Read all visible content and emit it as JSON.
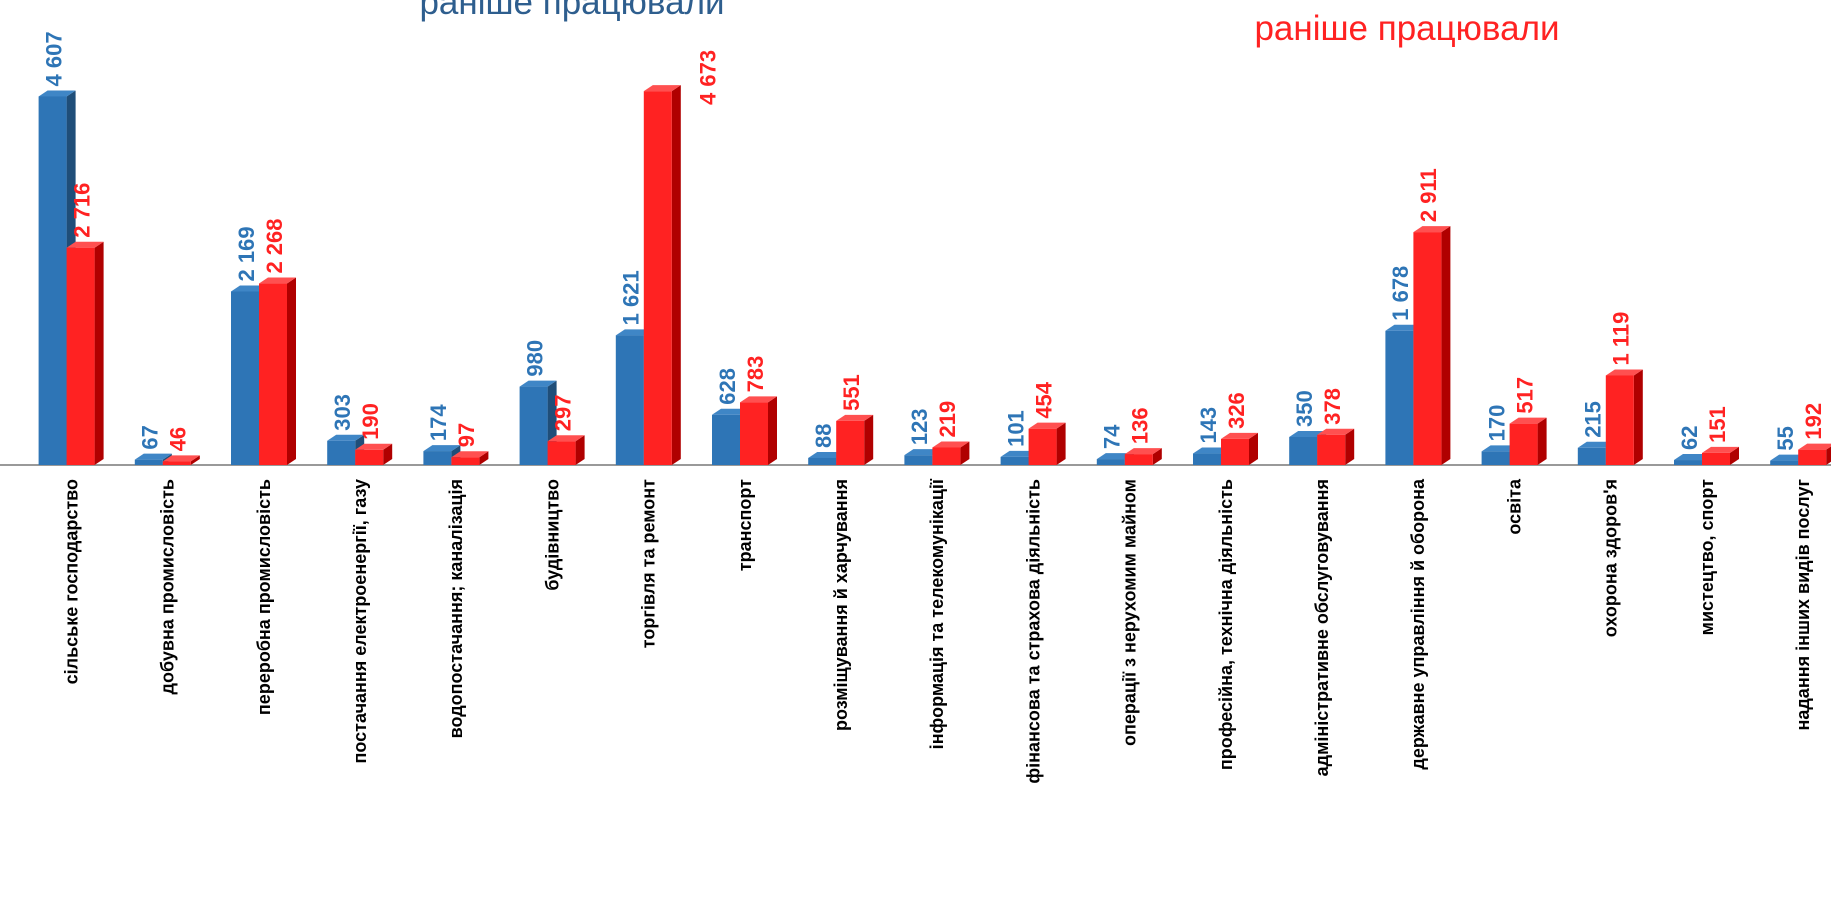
{
  "chart_data": {
    "type": "bar",
    "categories": [
      "сільське господарство",
      "добувна промисловість",
      "переробна промисловість",
      "постачання електроенергії, газу",
      "водопостачання; каналізація",
      "будівництво",
      "торгівля та ремонт",
      "транспорт",
      "розміщування й харчування",
      "інформація та телекомунікації",
      "фінансова та страхова діяльність",
      "операції з нерухомим майном",
      "професійна, технічна діяльність",
      "адміністративне обслуговування",
      "державне управління й оборона",
      "освіта",
      "охорона здоров'я",
      "мистецтво, спорт",
      "надання інших видів послуг"
    ],
    "series": [
      {
        "name": "раніше працювали",
        "color": "#2e75b6",
        "values": [
          4607,
          67,
          2169,
          303,
          174,
          980,
          1621,
          628,
          88,
          123,
          101,
          74,
          143,
          350,
          1678,
          170,
          215,
          62,
          55
        ],
        "value_labels": [
          "4 607",
          "67",
          "2 169",
          "303",
          "174",
          "980",
          "1 621",
          "628",
          "88",
          "123",
          "101",
          "74",
          "143",
          "350",
          "1 678",
          "170",
          "215",
          "62",
          "55"
        ]
      },
      {
        "name": "раніше працювали",
        "color": "#ff2222",
        "values": [
          2716,
          46,
          2268,
          190,
          97,
          297,
          4673,
          783,
          551,
          219,
          454,
          136,
          326,
          378,
          2911,
          517,
          1119,
          151,
          192
        ],
        "value_labels": [
          "2 716",
          "46",
          "2 268",
          "190",
          "97",
          "297",
          "4 673",
          "783",
          "551",
          "219",
          "454",
          "136",
          "326",
          "378",
          "2 911",
          "517",
          "1 119",
          "151",
          "192"
        ]
      }
    ]
  }
}
